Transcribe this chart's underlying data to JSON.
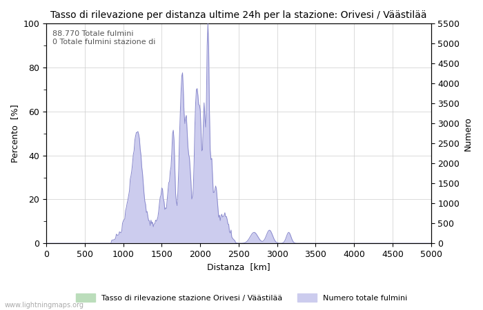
{
  "title": "Tasso di rilevazione per distanza ultime 24h per la stazione: Orivesi / Väästilää",
  "xlabel": "Distanza  [km]",
  "ylabel_left": "Percento  [%]",
  "ylabel_right": "Numero",
  "annotation_line1": "88.770 Totale fulmini",
  "annotation_line2": "0 Totale fulmini stazione di",
  "xlim": [
    0,
    5000
  ],
  "ylim_left": [
    0,
    100
  ],
  "ylim_right": [
    0,
    5500
  ],
  "xticks": [
    0,
    500,
    1000,
    1500,
    2000,
    2500,
    3000,
    3500,
    4000,
    4500,
    5000
  ],
  "yticks_left": [
    0,
    20,
    40,
    60,
    80,
    100
  ],
  "yticks_right": [
    0,
    500,
    1000,
    1500,
    2000,
    2500,
    3000,
    3500,
    4000,
    4500,
    5000,
    5500
  ],
  "legend_label_green": "Tasso di rilevazione stazione Orivesi / Väästilää",
  "legend_label_blue": "Numero totale fulmini",
  "watermark": "www.lightningmaps.org",
  "line_color_blue": "#8888cc",
  "fill_color_blue": "#ccccee",
  "fill_color_green": "#bbddbb",
  "background_color": "#ffffff",
  "grid_color": "#cccccc",
  "title_fontsize": 10,
  "axis_fontsize": 9,
  "tick_fontsize": 9,
  "figsize": [
    7.0,
    4.5
  ],
  "dpi": 100
}
